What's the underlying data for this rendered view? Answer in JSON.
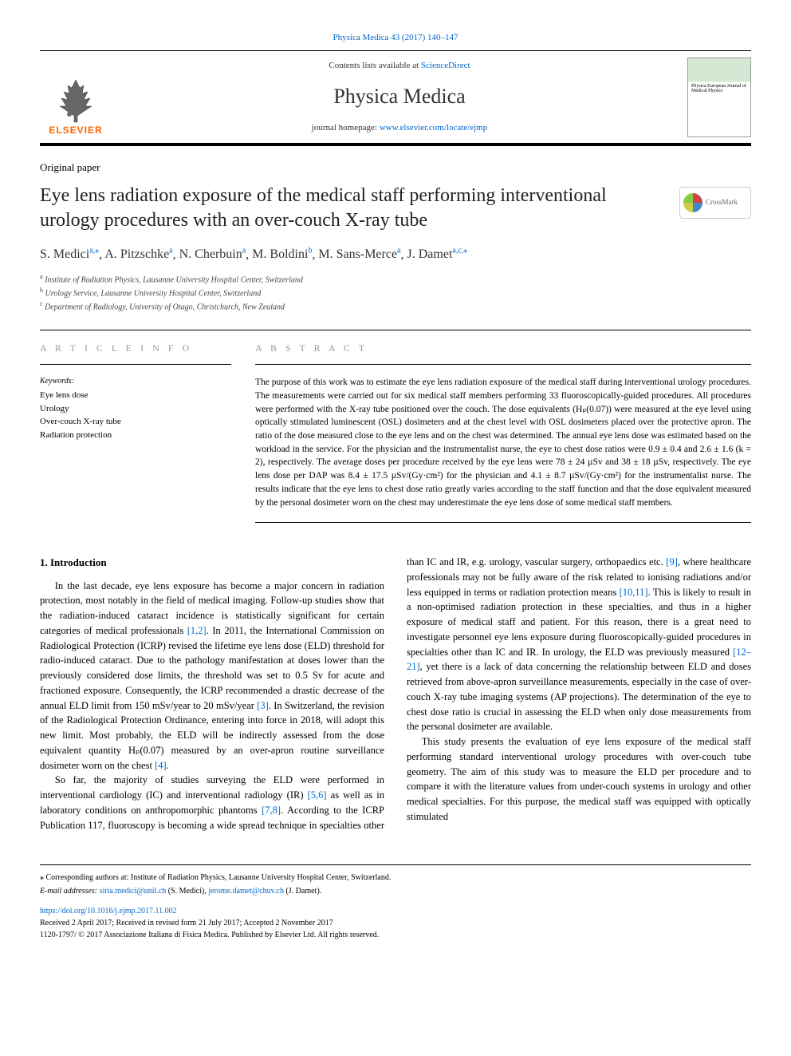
{
  "topCitation": "Physica Medica 43 (2017) 140–147",
  "header": {
    "contentsPrefix": "Contents lists available at ",
    "contentsLink": "ScienceDirect",
    "journalName": "Physica Medica",
    "homepagePrefix": "journal homepage: ",
    "homepageLink": "www.elsevier.com/locate/ejmp",
    "elsevierLabel": "ELSEVIER",
    "coverText": "Physica\nEuropean Journal\nof Medical Physics"
  },
  "crossmark": "CrossMark",
  "paperType": "Original paper",
  "title": "Eye lens radiation exposure of the medical staff performing interventional urology procedures with an over-couch X-ray tube",
  "authors": [
    {
      "name": "S. Medici",
      "marks": "a,⁎"
    },
    {
      "name": "A. Pitzschke",
      "marks": "a"
    },
    {
      "name": "N. Cherbuin",
      "marks": "a"
    },
    {
      "name": "M. Boldini",
      "marks": "b"
    },
    {
      "name": "M. Sans-Merce",
      "marks": "a"
    },
    {
      "name": "J. Damet",
      "marks": "a,c,⁎"
    }
  ],
  "affiliations": [
    {
      "mark": "a",
      "text": "Institute of Radiation Physics, Lausanne University Hospital Center, Switzerland"
    },
    {
      "mark": "b",
      "text": "Urology Service, Lausanne University Hospital Center, Switzerland"
    },
    {
      "mark": "c",
      "text": "Department of Radiology, University of Otago, Christchurch, New Zealand"
    }
  ],
  "articleInfo": {
    "heading": "A R T I C L E  I N F O",
    "keywordsLabel": "Keywords:",
    "keywords": [
      "Eye lens dose",
      "Urology",
      "Over-couch X-ray tube",
      "Radiation protection"
    ]
  },
  "abstract": {
    "heading": "A B S T R A C T",
    "text": "The purpose of this work was to estimate the eye lens radiation exposure of the medical staff during interventional urology procedures. The measurements were carried out for six medical staff members performing 33 fluoroscopically-guided procedures. All procedures were performed with the X-ray tube positioned over the couch. The dose equivalents (Hₚ(0.07)) were measured at the eye level using optically stimulated luminescent (OSL) dosimeters and at the chest level with OSL dosimeters placed over the protective apron. The ratio of the dose measured close to the eye lens and on the chest was determined. The annual eye lens dose was estimated based on the workload in the service. For the physician and the instrumentalist nurse, the eye to chest dose ratios were 0.9 ± 0.4 and 2.6 ± 1.6 (k = 2), respectively. The average doses per procedure received by the eye lens were 78 ± 24 µSv and 38 ± 18 µSv, respectively. The eye lens dose per DAP was 8.4 ± 17.5 µSv/(Gy·cm²) for the physician and 4.1 ± 8.7 µSv/(Gy·cm²) for the instrumentalist nurse. The results indicate that the eye lens to chest dose ratio greatly varies according to the staff function and that the dose equivalent measured by the personal dosimeter worn on the chest may underestimate the eye lens dose of some medical staff members."
  },
  "body": {
    "sectionNum": "1.",
    "sectionTitle": "Introduction",
    "p1a": "In the last decade, eye lens exposure has become a major concern in radiation protection, most notably in the field of medical imaging. Follow-up studies show that the radiation-induced cataract incidence is statistically significant for certain categories of medical professionals ",
    "r1": "[1,2]",
    "p1b": ". In 2011, the International Commission on Radiological Protection (ICRP) revised the lifetime eye lens dose (ELD) threshold for radio-induced cataract. Due to the pathology manifestation at doses lower than the previously considered dose limits, the threshold was set to 0.5 Sv for acute and fractioned exposure. Consequently, the ICRP recommended a drastic decrease of the annual ELD limit from 150 mSv/year to 20 mSv/year ",
    "r2": "[3]",
    "p1c": ". In Switzerland, the revision of the Radiological Protection Ordinance, entering into force in 2018, will adopt this new limit. Most probably, the ELD will be indirectly assessed from the dose equivalent quantity Hₚ(0.07) measured by an over-apron routine surveillance dosimeter worn on the chest ",
    "r3": "[4]",
    "p1d": ".",
    "p2a": "So far, the majority of studies surveying the ELD were performed in interventional cardiology (IC) and interventional radiology (IR) ",
    "r4": "[5,6]",
    "p2b": " as well as in laboratory conditions on anthropomorphic phantoms ",
    "r5": "[7,8]",
    "p2c": ". According to the ICRP Publication 117, fluoroscopy is becoming a wide spread technique in specialties other than IC and IR, e.g. urology, vascular surgery, orthopaedics etc. ",
    "r6": "[9]",
    "p2d": ", where healthcare professionals may not be fully aware of the risk related to ionising radiations and/or less equipped in terms or radiation protection means ",
    "r7": "[10,11]",
    "p2e": ". This is likely to result in a non-optimised radiation protection in these specialties, and thus in a higher exposure of medical staff and patient. For this reason, there is a great need to investigate personnel eye lens exposure during fluoroscopically-guided procedures in specialties other than IC and IR. In urology, the ELD was previously measured ",
    "r8": "[12–21]",
    "p2f": ", yet there is a lack of data concerning the relationship between ELD and doses retrieved from above-apron surveillance measurements, especially in the case of over-couch X-ray tube imaging systems (AP projections). The determination of the eye to chest dose ratio is crucial in assessing the ELD when only dose measurements from the personal dosimeter are available.",
    "p3": "This study presents the evaluation of eye lens exposure of the medical staff performing standard interventional urology procedures with over-couch tube geometry. The aim of this study was to measure the ELD per procedure and to compare it with the literature values from under-couch systems in urology and other medical specialties. For this purpose, the medical staff was equipped with optically stimulated"
  },
  "footer": {
    "corr": "⁎ Corresponding authors at: Institute of Radiation Physics, Lausanne University Hospital Center, Switzerland.",
    "emailLabel": "E-mail addresses: ",
    "email1": "siria.medici@unil.ch",
    "email1Name": " (S. Medici), ",
    "email2": "jerome.damet@chuv.ch",
    "email2Name": " (J. Damet).",
    "doi": "https://doi.org/10.1016/j.ejmp.2017.11.002",
    "received": "Received 2 April 2017; Received in revised form 21 July 2017; Accepted 2 November 2017",
    "copyright": "1120-1797/ © 2017 Associazione Italiana di Fisica Medica. Published by Elsevier Ltd. All rights reserved."
  },
  "colors": {
    "link": "#0066cc",
    "elsevierOrange": "#ff6600",
    "headingGray": "#999999",
    "textBlack": "#000000"
  },
  "layout": {
    "pageWidth": 992,
    "pageHeight": 1323,
    "bodyColumns": 2,
    "columnGap": 28
  }
}
